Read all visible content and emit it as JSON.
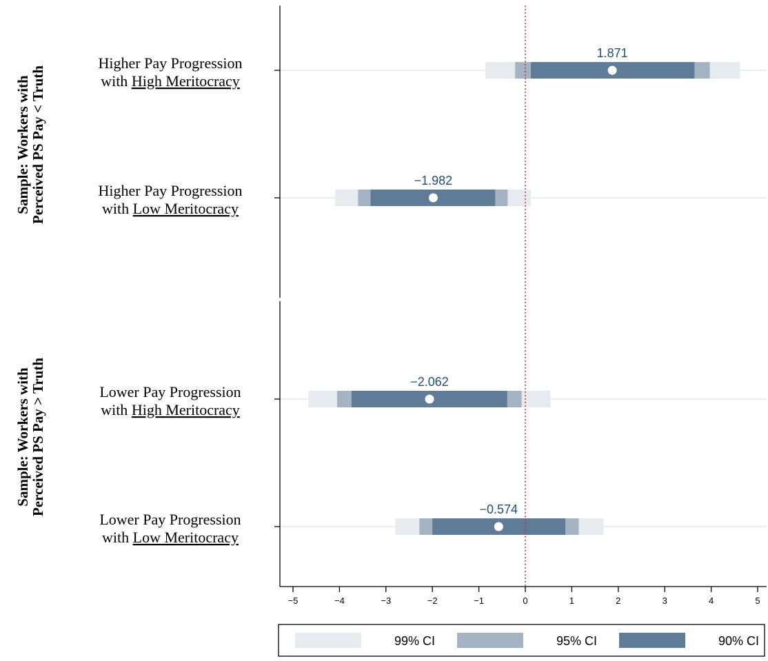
{
  "chart_data": {
    "type": "coefficient_plot",
    "groups": [
      {
        "label_line1": "Sample: Workers with",
        "label_line2": "Perceived PS Pay < Truth"
      },
      {
        "label_line1": "Sample: Workers with",
        "label_line2": "Perceived PS Pay > Truth"
      }
    ],
    "rows": [
      {
        "group": 0,
        "label_line1": "Higher Pay Progression",
        "label_prefix": "with ",
        "label_underlined": "High Meritocracy",
        "estimate": 1.871,
        "value_label": "1.871",
        "ci99": [
          -0.86,
          4.62
        ],
        "ci95": [
          -0.22,
          3.97
        ],
        "ci90": [
          0.12,
          3.64
        ]
      },
      {
        "group": 0,
        "label_line1": "Higher Pay Progression",
        "label_prefix": "with ",
        "label_underlined": "Low Meritocracy",
        "estimate": -1.982,
        "value_label": "−1.982",
        "ci99": [
          -4.09,
          0.12
        ],
        "ci95": [
          -3.6,
          -0.38
        ],
        "ci90": [
          -3.33,
          -0.65
        ]
      },
      {
        "group": 1,
        "label_line1": "Lower Pay Progression",
        "label_prefix": "with ",
        "label_underlined": "High Meritocracy",
        "estimate": -2.062,
        "value_label": "−2.062",
        "ci99": [
          -4.67,
          0.54
        ],
        "ci95": [
          -4.05,
          -0.08
        ],
        "ci90": [
          -3.74,
          -0.39
        ]
      },
      {
        "group": 1,
        "label_line1": "Lower Pay Progression",
        "label_prefix": "with ",
        "label_underlined": "Low Meritocracy",
        "estimate": -0.574,
        "value_label": "−0.574",
        "ci99": [
          -2.8,
          1.68
        ],
        "ci95": [
          -2.28,
          1.15
        ],
        "ci90": [
          -2.0,
          0.86
        ]
      }
    ],
    "x_ticks": [
      -5,
      -4,
      -3,
      -2,
      -1,
      0,
      1,
      2,
      3,
      4,
      5
    ],
    "x_tick_labels": [
      "−5",
      "−4",
      "−3",
      "−2",
      "−1",
      "0",
      "1",
      "2",
      "3",
      "4",
      "5"
    ],
    "xlim": [
      -5,
      5
    ],
    "reference_line": 0,
    "legend": [
      {
        "key": "ci99",
        "label": "99% CI",
        "color": "#e6ebef"
      },
      {
        "key": "ci95",
        "label": "95% CI",
        "color": "#a3b3c2"
      },
      {
        "key": "ci90",
        "label": "90% CI",
        "color": "#5e7b97"
      }
    ],
    "legend_placement": "bottom",
    "colors": {
      "row_line": "#e8eef2",
      "point": "#ffffff",
      "value_label": "#1f4e79",
      "reference_line": "#d62728",
      "axis": "#000000"
    }
  }
}
